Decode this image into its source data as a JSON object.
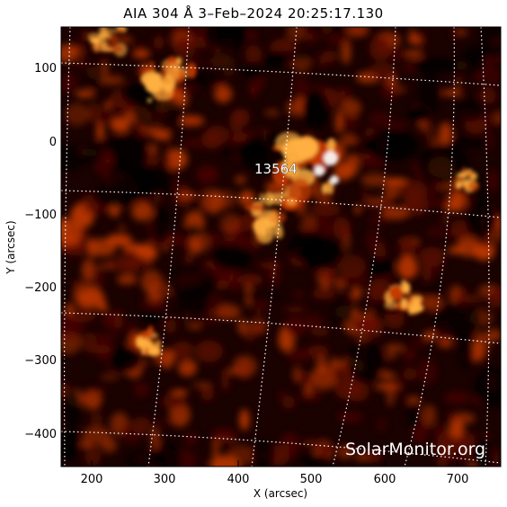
{
  "title": "AIA 304 Å  3–Feb–2024 20:25:17.130",
  "x_axis": {
    "label": "X (arcsec)",
    "ticks": [
      "200",
      "300",
      "400",
      "500",
      "600",
      "700"
    ]
  },
  "y_axis": {
    "label": "Y (arcsec)",
    "ticks": [
      "100",
      "0",
      "−100",
      "−200",
      "−300",
      "−400"
    ]
  },
  "active_region_label": "13564",
  "watermark": "SolarMonitor.org",
  "colors": {
    "background": "#000000",
    "emission_dim": "#5a0a00",
    "emission_mid": "#c43a00",
    "emission_bright": "#ffb040",
    "emission_peak": "#ffffff",
    "grid": "#ffffff"
  }
}
